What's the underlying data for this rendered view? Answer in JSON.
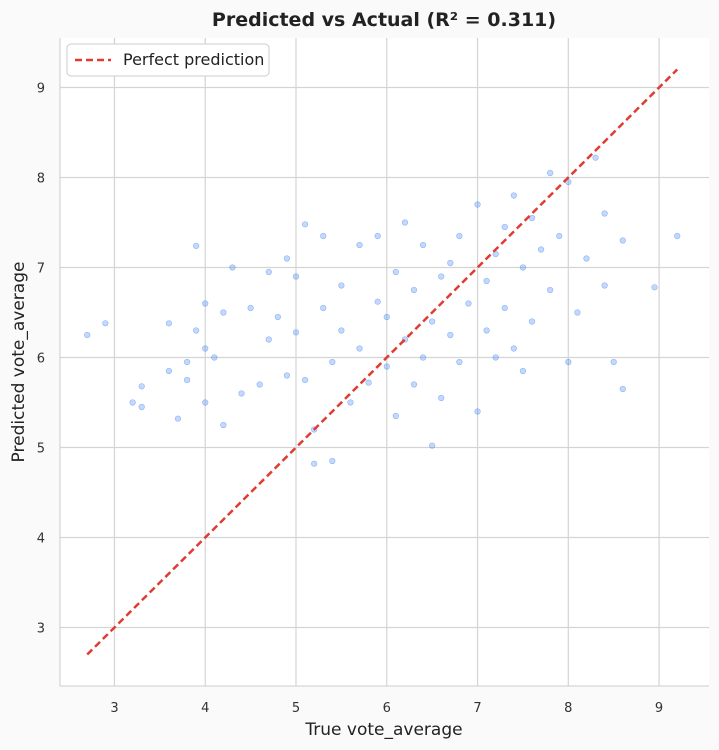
{
  "chart_data": {
    "type": "scatter",
    "title": "Predicted vs Actual  (R² = 0.311)",
    "xlabel": "True vote_average",
    "ylabel": "Predicted vote_average",
    "xlim": [
      2.4,
      9.55
    ],
    "ylim": [
      2.35,
      9.55
    ],
    "x_ticks": [
      3,
      4,
      5,
      6,
      7,
      8,
      9
    ],
    "y_ticks": [
      3,
      4,
      5,
      6,
      7,
      8,
      9
    ],
    "grid": true,
    "legend_position": "top-left",
    "reference_line": {
      "name": "Perfect prediction",
      "x": [
        2.7,
        9.2
      ],
      "y": [
        2.7,
        9.2
      ],
      "color": "#e03c31",
      "style": "dashed"
    },
    "point_color": "#3a7ef5",
    "series": [
      {
        "points": [
          [
            2.7,
            6.25
          ],
          [
            2.9,
            6.38
          ],
          [
            3.2,
            5.5
          ],
          [
            3.3,
            5.68
          ],
          [
            3.3,
            5.45
          ],
          [
            3.6,
            5.85
          ],
          [
            3.6,
            6.38
          ],
          [
            3.7,
            5.32
          ],
          [
            3.8,
            5.95
          ],
          [
            3.8,
            5.75
          ],
          [
            3.9,
            7.24
          ],
          [
            3.9,
            6.3
          ],
          [
            4.0,
            6.6
          ],
          [
            4.0,
            5.5
          ],
          [
            4.0,
            6.1
          ],
          [
            4.1,
            6.0
          ],
          [
            4.2,
            5.25
          ],
          [
            4.2,
            6.5
          ],
          [
            4.3,
            7.0
          ],
          [
            4.4,
            5.6
          ],
          [
            4.5,
            6.55
          ],
          [
            4.6,
            5.7
          ],
          [
            4.7,
            6.95
          ],
          [
            4.7,
            6.2
          ],
          [
            4.8,
            6.45
          ],
          [
            4.9,
            7.1
          ],
          [
            4.9,
            5.8
          ],
          [
            5.0,
            6.28
          ],
          [
            5.0,
            6.9
          ],
          [
            5.1,
            7.48
          ],
          [
            5.1,
            5.75
          ],
          [
            5.2,
            4.82
          ],
          [
            5.2,
            5.2
          ],
          [
            5.3,
            6.55
          ],
          [
            5.3,
            7.35
          ],
          [
            5.4,
            4.85
          ],
          [
            5.4,
            5.95
          ],
          [
            5.5,
            6.3
          ],
          [
            5.5,
            6.8
          ],
          [
            5.6,
            5.5
          ],
          [
            5.7,
            7.25
          ],
          [
            5.7,
            6.1
          ],
          [
            5.8,
            5.72
          ],
          [
            5.9,
            6.62
          ],
          [
            5.9,
            7.35
          ],
          [
            6.0,
            5.9
          ],
          [
            6.0,
            6.45
          ],
          [
            6.1,
            5.35
          ],
          [
            6.1,
            6.95
          ],
          [
            6.2,
            7.5
          ],
          [
            6.2,
            6.2
          ],
          [
            6.3,
            5.7
          ],
          [
            6.3,
            6.75
          ],
          [
            6.4,
            7.25
          ],
          [
            6.4,
            6.0
          ],
          [
            6.5,
            5.02
          ],
          [
            6.5,
            6.4
          ],
          [
            6.6,
            6.9
          ],
          [
            6.6,
            5.55
          ],
          [
            6.7,
            7.05
          ],
          [
            6.7,
            6.25
          ],
          [
            6.8,
            5.95
          ],
          [
            6.8,
            7.35
          ],
          [
            6.9,
            6.6
          ],
          [
            7.0,
            7.7
          ],
          [
            7.0,
            5.4
          ],
          [
            7.1,
            6.85
          ],
          [
            7.1,
            6.3
          ],
          [
            7.2,
            7.15
          ],
          [
            7.2,
            6.0
          ],
          [
            7.3,
            7.45
          ],
          [
            7.3,
            6.55
          ],
          [
            7.4,
            7.8
          ],
          [
            7.4,
            6.1
          ],
          [
            7.5,
            7.0
          ],
          [
            7.5,
            5.85
          ],
          [
            7.6,
            7.55
          ],
          [
            7.6,
            6.4
          ],
          [
            7.7,
            7.2
          ],
          [
            7.8,
            8.05
          ],
          [
            7.8,
            6.75
          ],
          [
            7.9,
            7.35
          ],
          [
            8.0,
            7.95
          ],
          [
            8.0,
            5.95
          ],
          [
            8.1,
            6.5
          ],
          [
            8.2,
            7.1
          ],
          [
            8.3,
            8.22
          ],
          [
            8.4,
            7.6
          ],
          [
            8.4,
            6.8
          ],
          [
            8.5,
            5.95
          ],
          [
            8.6,
            5.65
          ],
          [
            8.6,
            7.3
          ],
          [
            8.95,
            6.78
          ],
          [
            9.2,
            7.35
          ]
        ]
      }
    ]
  }
}
